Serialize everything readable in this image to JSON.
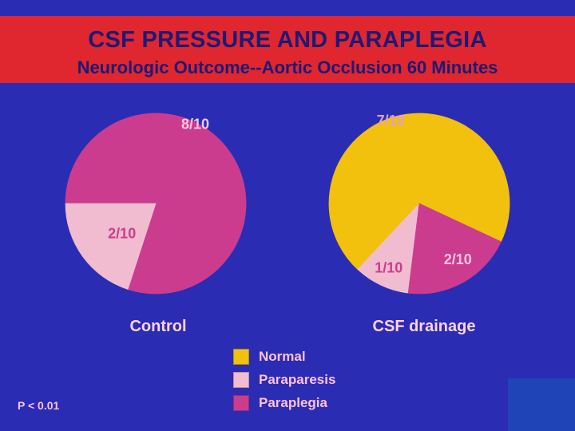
{
  "header": {
    "title": "CSF PRESSURE AND PARAPLEGIA",
    "subtitle": "Neurologic Outcome--Aortic Occlusion 60 Minutes"
  },
  "footer": {
    "pvalue": "P < 0.01"
  },
  "colors": {
    "background": "#2a2cb4",
    "banner": "#e0262e",
    "normal": "#f2c10d",
    "paraparesis": "#f2bcd0",
    "paraplegia": "#cc3c8e"
  },
  "chart_data": [
    {
      "type": "pie",
      "title": "Control",
      "slices": [
        {
          "name": "Paraplegia",
          "value": 8,
          "label": "8/10",
          "color": "#cc3c8e"
        },
        {
          "name": "Paraparesis",
          "value": 2,
          "label": "2/10",
          "color": "#f2bcd0"
        }
      ]
    },
    {
      "type": "pie",
      "title": "CSF drainage",
      "slices": [
        {
          "name": "Normal",
          "value": 7,
          "label": "7/10",
          "color": "#f2c10d"
        },
        {
          "name": "Paraparesis",
          "value": 1,
          "label": "1/10",
          "color": "#f2bcd0"
        },
        {
          "name": "Paraplegia",
          "value": 2,
          "label": "2/10",
          "color": "#cc3c8e"
        }
      ]
    }
  ],
  "legend": [
    {
      "label": "Normal",
      "color": "#f2c10d"
    },
    {
      "label": "Paraparesis",
      "color": "#f2bcd0"
    },
    {
      "label": "Paraplegia",
      "color": "#cc3c8e"
    }
  ]
}
